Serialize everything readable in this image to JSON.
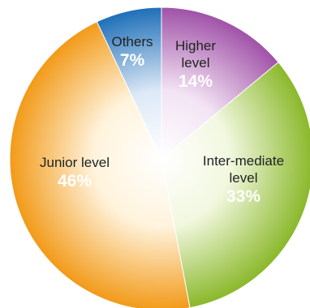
{
  "chart_data": {
    "type": "pie",
    "start_angle_deg": 0,
    "direction": "clockwise",
    "slices": [
      {
        "label_lines": [
          "Higher",
          "level"
        ],
        "value": 14,
        "pct_text": "14%",
        "color": "#a052a8",
        "highlight": "#f3e4f4"
      },
      {
        "label_lines": [
          "Inter-mediate",
          "level"
        ],
        "value": 33,
        "pct_text": "33%",
        "color": "#8ab82a",
        "highlight": "#f2f8e0"
      },
      {
        "label_lines": [
          "Junior level"
        ],
        "value": 46,
        "pct_text": "46%",
        "color": "#f29a18",
        "highlight": "#fff3dc"
      },
      {
        "label_lines": [
          "Others"
        ],
        "value": 7,
        "pct_text": "7%",
        "color": "#1e6fb8",
        "highlight": "#dde9f7"
      }
    ]
  }
}
